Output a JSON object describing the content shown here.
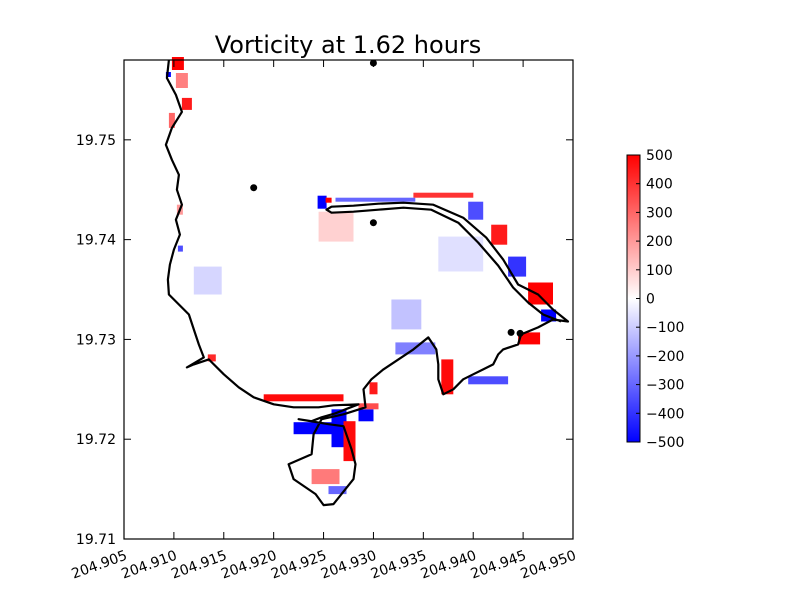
{
  "chart_data": {
    "type": "heatmap",
    "title": "Vorticity at 1.62 hours",
    "xlabel": "",
    "ylabel": "",
    "xlim": [
      204.905,
      204.95
    ],
    "ylim": [
      19.71,
      19.758
    ],
    "x_ticks": [
      "204.905",
      "204.910",
      "204.915",
      "204.920",
      "204.925",
      "204.930",
      "204.935",
      "204.940",
      "204.945",
      "204.950"
    ],
    "y_ticks": [
      "19.71",
      "19.72",
      "19.73",
      "19.74",
      "19.75"
    ],
    "x_tick_values": [
      204.905,
      204.91,
      204.915,
      204.92,
      204.925,
      204.93,
      204.935,
      204.94,
      204.945,
      204.95
    ],
    "y_tick_values": [
      19.71,
      19.72,
      19.73,
      19.74,
      19.75
    ],
    "grid": false,
    "colormap": "bwr",
    "colorbar": {
      "min": -500,
      "max": 500,
      "ticks": [
        "500",
        "400",
        "300",
        "200",
        "100",
        "0",
        "−100",
        "−200",
        "−300",
        "−400",
        "−500"
      ],
      "tick_values": [
        500,
        400,
        300,
        200,
        100,
        0,
        -100,
        -200,
        -300,
        -400,
        -500
      ],
      "colors": {
        "min": "#0000ff",
        "mid": "#ffffff",
        "max": "#ff0000"
      }
    },
    "gauges": [
      {
        "x": 204.93,
        "y": 19.7577
      },
      {
        "x": 204.918,
        "y": 19.7452
      },
      {
        "x": 204.93,
        "y": 19.7417
      },
      {
        "x": 204.9438,
        "y": 19.7307
      },
      {
        "x": 204.9447,
        "y": 19.7306
      }
    ],
    "shoreline": [
      [
        204.9095,
        19.758
      ],
      [
        204.9093,
        19.7562
      ],
      [
        204.9102,
        19.7545
      ],
      [
        204.9108,
        19.7528
      ],
      [
        204.9098,
        19.7512
      ],
      [
        204.9092,
        19.7495
      ],
      [
        204.9098,
        19.748
      ],
      [
        204.9105,
        19.7465
      ],
      [
        204.9103,
        19.745
      ],
      [
        204.9108,
        19.7435
      ],
      [
        204.9102,
        19.742
      ],
      [
        204.9106,
        19.7405
      ],
      [
        204.91,
        19.739
      ],
      [
        204.9096,
        19.7375
      ],
      [
        204.9094,
        19.736
      ],
      [
        204.9095,
        19.7345
      ],
      [
        204.9105,
        19.7335
      ],
      [
        204.9115,
        19.7325
      ],
      [
        204.912,
        19.731
      ],
      [
        204.9125,
        19.7295
      ],
      [
        204.913,
        19.7282
      ],
      [
        204.9113,
        19.7272
      ],
      [
        204.912,
        19.7275
      ],
      [
        204.9135,
        19.728
      ],
      [
        204.915,
        19.7265
      ],
      [
        204.9165,
        19.7252
      ],
      [
        204.918,
        19.7242
      ],
      [
        204.92,
        19.7235
      ],
      [
        204.922,
        19.7232
      ],
      [
        204.9245,
        19.7232
      ],
      [
        204.926,
        19.7234
      ],
      [
        204.9285,
        19.7235
      ],
      [
        204.9272,
        19.723
      ],
      [
        204.9262,
        19.7226
      ],
      [
        204.9248,
        19.7222
      ],
      [
        204.9238,
        19.7218
      ],
      [
        204.9225,
        19.722
      ],
      [
        204.9255,
        19.7215
      ],
      [
        204.927,
        19.7213
      ],
      [
        204.9278,
        19.719
      ],
      [
        204.9282,
        19.7175
      ],
      [
        204.928,
        19.716
      ],
      [
        204.9272,
        19.715
      ],
      [
        204.926,
        19.7135
      ],
      [
        204.925,
        19.7134
      ],
      [
        204.9242,
        19.7145
      ],
      [
        204.922,
        19.716
      ],
      [
        204.9215,
        19.7175
      ],
      [
        204.9238,
        19.7185
      ],
      [
        204.924,
        19.7205
      ],
      [
        204.9248,
        19.722
      ],
      [
        204.927,
        19.7225
      ],
      [
        204.9292,
        19.7232
      ],
      [
        204.929,
        19.725
      ],
      [
        204.9298,
        19.726
      ],
      [
        204.931,
        19.727
      ],
      [
        204.9325,
        19.728
      ],
      [
        204.934,
        19.729
      ],
      [
        204.9355,
        19.7302
      ],
      [
        204.9363,
        19.729
      ],
      [
        204.9365,
        19.7275
      ],
      [
        204.9365,
        19.726
      ],
      [
        204.937,
        19.7245
      ],
      [
        204.938,
        19.725
      ],
      [
        204.939,
        19.726
      ],
      [
        204.94,
        19.7265
      ],
      [
        204.941,
        19.727
      ],
      [
        204.942,
        19.7275
      ],
      [
        204.9425,
        19.7285
      ],
      [
        204.943,
        19.729
      ],
      [
        204.9445,
        19.7295
      ],
      [
        204.9448,
        19.7305
      ],
      [
        204.9465,
        19.7312
      ],
      [
        204.948,
        19.732
      ],
      [
        204.9495,
        19.7318
      ],
      [
        204.948,
        19.733
      ],
      [
        204.9465,
        19.7345
      ],
      [
        204.9445,
        19.7355
      ],
      [
        204.943,
        19.738
      ],
      [
        204.9413,
        19.7402
      ],
      [
        204.939,
        19.7422
      ],
      [
        204.936,
        19.7435
      ],
      [
        204.933,
        19.7437
      ],
      [
        204.9305,
        19.7436
      ],
      [
        204.928,
        19.7434
      ],
      [
        204.9258,
        19.7433
      ],
      [
        204.9253,
        19.743
      ],
      [
        204.9258,
        19.7427
      ],
      [
        204.928,
        19.7428
      ],
      [
        204.9305,
        19.743
      ],
      [
        204.933,
        19.7432
      ],
      [
        204.9358,
        19.743
      ],
      [
        204.9385,
        19.7417
      ],
      [
        204.9405,
        19.7397
      ],
      [
        204.9425,
        19.7374
      ],
      [
        204.944,
        19.7352
      ],
      [
        204.9455,
        19.7337
      ],
      [
        204.947,
        19.7325
      ],
      [
        204.9488,
        19.7318
      ]
    ],
    "vorticity_patches": [
      {
        "x": 204.9098,
        "y": 19.757,
        "w": 0.0012,
        "h": 0.0013,
        "v": 500
      },
      {
        "x": 204.9092,
        "y": 19.7563,
        "w": 0.0005,
        "h": 0.0005,
        "v": -500
      },
      {
        "x": 204.9102,
        "y": 19.7552,
        "w": 0.0012,
        "h": 0.0015,
        "v": 250
      },
      {
        "x": 204.9108,
        "y": 19.753,
        "w": 0.001,
        "h": 0.0012,
        "v": 450
      },
      {
        "x": 204.9095,
        "y": 19.7512,
        "w": 0.0006,
        "h": 0.0015,
        "v": 300
      },
      {
        "x": 204.9103,
        "y": 19.7425,
        "w": 0.0006,
        "h": 0.001,
        "v": 200
      },
      {
        "x": 204.9104,
        "y": 19.7388,
        "w": 0.0005,
        "h": 0.0006,
        "v": -350
      },
      {
        "x": 204.9134,
        "y": 19.7278,
        "w": 0.0008,
        "h": 0.0007,
        "v": 420
      },
      {
        "x": 204.9244,
        "y": 19.7431,
        "w": 0.0009,
        "h": 0.0013,
        "v": -500
      },
      {
        "x": 204.9252,
        "y": 19.7437,
        "w": 0.0006,
        "h": 0.0005,
        "v": 500
      },
      {
        "x": 204.9245,
        "y": 19.7398,
        "w": 0.0035,
        "h": 0.003,
        "v": 90
      },
      {
        "x": 204.9262,
        "y": 19.7438,
        "w": 0.008,
        "h": 0.0004,
        "v": -300
      },
      {
        "x": 204.934,
        "y": 19.7442,
        "w": 0.006,
        "h": 0.0005,
        "v": 400
      },
      {
        "x": 204.9395,
        "y": 19.742,
        "w": 0.0015,
        "h": 0.0018,
        "v": -350
      },
      {
        "x": 204.9418,
        "y": 19.7395,
        "w": 0.0016,
        "h": 0.002,
        "v": 450
      },
      {
        "x": 204.9435,
        "y": 19.7363,
        "w": 0.0018,
        "h": 0.002,
        "v": -400
      },
      {
        "x": 204.9455,
        "y": 19.7335,
        "w": 0.0025,
        "h": 0.0022,
        "v": 500
      },
      {
        "x": 204.9468,
        "y": 19.7318,
        "w": 0.0015,
        "h": 0.0012,
        "v": -500
      },
      {
        "x": 204.9445,
        "y": 19.7295,
        "w": 0.0022,
        "h": 0.0012,
        "v": 500
      },
      {
        "x": 204.9395,
        "y": 19.7255,
        "w": 0.004,
        "h": 0.0008,
        "v": -350
      },
      {
        "x": 204.9368,
        "y": 19.7245,
        "w": 0.0012,
        "h": 0.0035,
        "v": 480
      },
      {
        "x": 204.9322,
        "y": 19.7285,
        "w": 0.004,
        "h": 0.0012,
        "v": -250
      },
      {
        "x": 204.9296,
        "y": 19.7245,
        "w": 0.0008,
        "h": 0.0012,
        "v": 450
      },
      {
        "x": 204.919,
        "y": 19.7238,
        "w": 0.008,
        "h": 0.0007,
        "v": 480
      },
      {
        "x": 204.922,
        "y": 19.7205,
        "w": 0.0055,
        "h": 0.0012,
        "v": -500
      },
      {
        "x": 204.9258,
        "y": 19.7192,
        "w": 0.0015,
        "h": 0.0038,
        "v": -500
      },
      {
        "x": 204.927,
        "y": 19.7178,
        "w": 0.0012,
        "h": 0.004,
        "v": 480
      },
      {
        "x": 204.9238,
        "y": 19.7155,
        "w": 0.0028,
        "h": 0.0015,
        "v": 260
      },
      {
        "x": 204.9255,
        "y": 19.7145,
        "w": 0.0018,
        "h": 0.0008,
        "v": -300
      },
      {
        "x": 204.9285,
        "y": 19.7218,
        "w": 0.0015,
        "h": 0.0012,
        "v": -500
      },
      {
        "x": 204.9285,
        "y": 19.723,
        "w": 0.002,
        "h": 0.0006,
        "v": 350
      },
      {
        "x": 204.912,
        "y": 19.7345,
        "w": 0.0028,
        "h": 0.0028,
        "v": -80
      },
      {
        "x": 204.9365,
        "y": 19.7368,
        "w": 0.0045,
        "h": 0.0035,
        "v": -60
      },
      {
        "x": 204.9318,
        "y": 19.731,
        "w": 0.003,
        "h": 0.003,
        "v": -120
      }
    ]
  }
}
